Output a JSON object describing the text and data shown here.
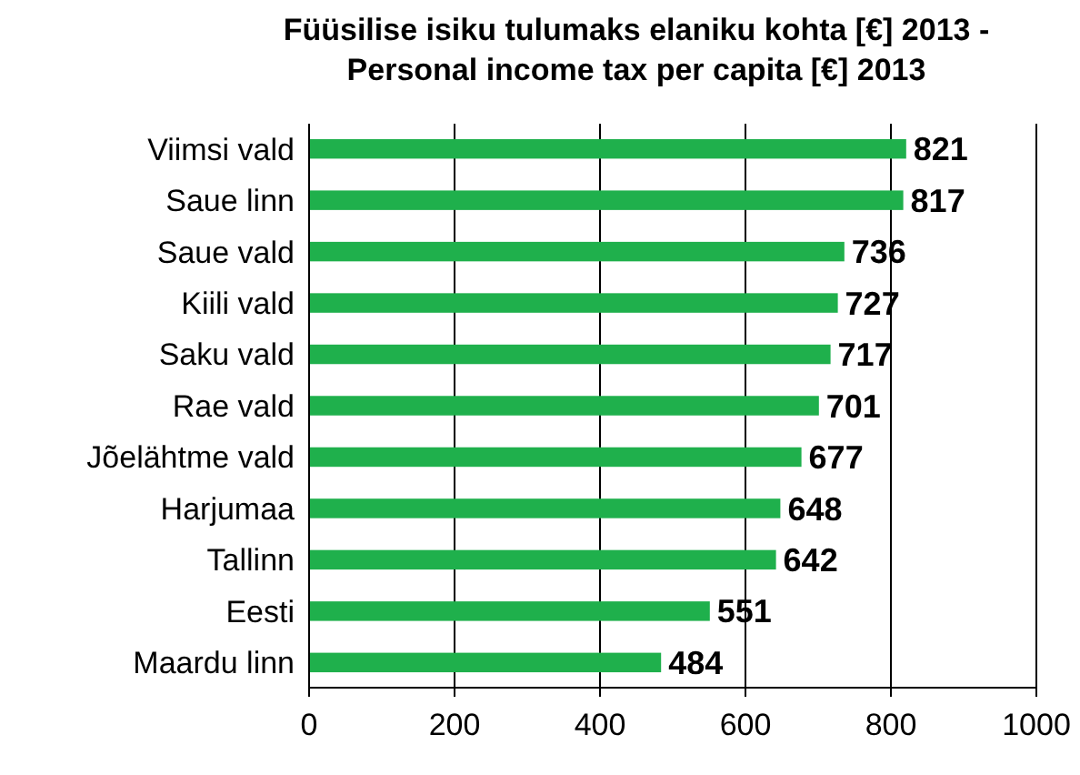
{
  "chart_data": {
    "type": "bar",
    "orientation": "horizontal",
    "title": "Füüsilise isiku tulumaks elaniku kohta [€] 2013 - Personal income tax per capita [€] 2013",
    "categories": [
      "Viimsi vald",
      "Saue linn",
      "Saue vald",
      "Kiili vald",
      "Saku vald",
      "Rae vald",
      "Jõelähtme vald",
      "Harjumaa",
      "Tallinn",
      "Eesti",
      "Maardu linn"
    ],
    "values": [
      821,
      817,
      736,
      727,
      717,
      701,
      677,
      648,
      642,
      551,
      484
    ],
    "color": "#1fb04c",
    "xlim": [
      0,
      1000
    ],
    "xticks": [
      0,
      200,
      400,
      600,
      800,
      1000
    ],
    "grid": "x",
    "data_labels": true
  }
}
